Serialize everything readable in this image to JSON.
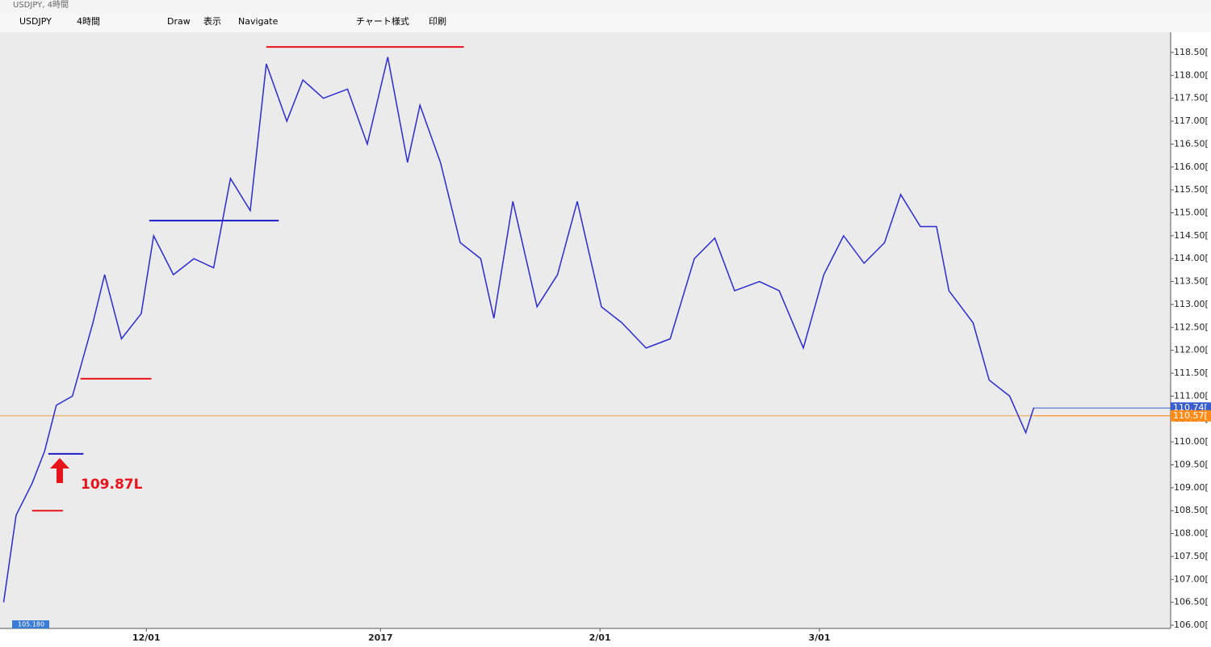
{
  "window_title": "USDJPY, 4時間",
  "toolbar": {
    "symbol": "USDJPY",
    "timeframe": "4時間",
    "draw": "Draw",
    "view": "表示",
    "navigate": "Navigate",
    "chart_style": "チャート様式",
    "print": "印刷"
  },
  "chart_data": {
    "type": "line",
    "annotation": "109.87L",
    "x": [
      0.5,
      2.2,
      4.4,
      6.1,
      7.7,
      9.9,
      12.7,
      14.3,
      16.6,
      19.3,
      21.0,
      23.7,
      26.5,
      29.2,
      31.5,
      34.2,
      36.4,
      39.2,
      41.4,
      44.2,
      47.5,
      50.2,
      53.0,
      55.7,
      57.4,
      60.2,
      62.9,
      65.7,
      67.5,
      70.1,
      73.4,
      76.2,
      78.9,
      82.2,
      85.0,
      88.3,
      91.6,
      94.9,
      97.7,
      100.4,
      103.8,
      106.5,
      109.8,
      112.6,
      115.3,
      118.1,
      120.9,
      123.1,
      125.8,
      128.0,
      129.7,
      133.0,
      135.2,
      138.0,
      140.2,
      141.3
    ],
    "series": [
      {
        "name": "USDJPY",
        "color": "#2b2bd0",
        "values": [
          106.5,
          108.4,
          109.1,
          109.8,
          110.8,
          111.0,
          112.6,
          113.65,
          112.25,
          112.8,
          114.5,
          113.65,
          114.0,
          113.8,
          115.75,
          115.05,
          118.25,
          117.0,
          117.9,
          117.5,
          117.7,
          116.5,
          118.4,
          116.1,
          117.35,
          116.1,
          114.35,
          114.0,
          112.7,
          115.25,
          112.95,
          113.65,
          115.25,
          112.95,
          112.6,
          112.05,
          112.25,
          114.0,
          114.45,
          113.3,
          113.5,
          113.3,
          112.05,
          113.65,
          114.5,
          113.9,
          114.35,
          115.4,
          114.7,
          114.7,
          113.3,
          112.6,
          111.35,
          111.0,
          110.2,
          110.75
        ]
      }
    ],
    "levels": [
      {
        "color": "#e8141c",
        "value": 108.5,
        "x": [
          4.4,
          8.6
        ]
      },
      {
        "color": "#1c1cc8",
        "value": 109.74,
        "x": [
          6.6,
          11.4
        ]
      },
      {
        "color": "#e8141c",
        "value": 111.38,
        "x": [
          11.0,
          20.7
        ]
      },
      {
        "color": "#1c1cc8",
        "value": 114.83,
        "x": [
          20.4,
          38.1
        ]
      },
      {
        "color": "#e8141c",
        "value": 118.62,
        "x": [
          36.4,
          63.4
        ]
      }
    ],
    "current_price": {
      "value": 110.57,
      "color": "#f0a040"
    },
    "price_labels": [
      {
        "value": 110.74,
        "label": "110.74[",
        "color": "#3a5fcd"
      },
      {
        "value": 110.57,
        "label": "110.57[",
        "color": "#ff8c1a"
      }
    ],
    "low_marker": {
      "value": 105.18,
      "label": "105.180"
    },
    "xlim": [
      0,
      160
    ],
    "xticks": [
      {
        "value": 20,
        "label": "12/01"
      },
      {
        "value": 52,
        "label": "2017"
      },
      {
        "value": 82,
        "label": "2/01"
      },
      {
        "value": 112,
        "label": "3/01"
      }
    ],
    "ylim": [
      105.93,
      118.94
    ],
    "yticks": [
      {
        "value": 106,
        "label": "106.00["
      },
      {
        "value": 106.5,
        "label": "106.50["
      },
      {
        "value": 107,
        "label": "107.00["
      },
      {
        "value": 107.5,
        "label": "107.50["
      },
      {
        "value": 108,
        "label": "108.00["
      },
      {
        "value": 108.5,
        "label": "108.50["
      },
      {
        "value": 109,
        "label": "109.00["
      },
      {
        "value": 109.5,
        "label": "109.50["
      },
      {
        "value": 110,
        "label": "110.00["
      },
      {
        "value": 110.5,
        "label": "110.50["
      },
      {
        "value": 111,
        "label": "111.00["
      },
      {
        "value": 111.5,
        "label": "111.50["
      },
      {
        "value": 112,
        "label": "112.00["
      },
      {
        "value": 112.5,
        "label": "112.50["
      },
      {
        "value": 113,
        "label": "113.00["
      },
      {
        "value": 113.5,
        "label": "113.50["
      },
      {
        "value": 114,
        "label": "114.00["
      },
      {
        "value": 114.5,
        "label": "114.50["
      },
      {
        "value": 115,
        "label": "115.00["
      },
      {
        "value": 115.5,
        "label": "115.50["
      },
      {
        "value": 116,
        "label": "116.00["
      },
      {
        "value": 116.5,
        "label": "116.50["
      },
      {
        "value": 117,
        "label": "117.00["
      },
      {
        "value": 117.5,
        "label": "117.50["
      },
      {
        "value": 118,
        "label": "118.00["
      },
      {
        "value": 118.5,
        "label": "118.50["
      }
    ],
    "grid": false
  }
}
